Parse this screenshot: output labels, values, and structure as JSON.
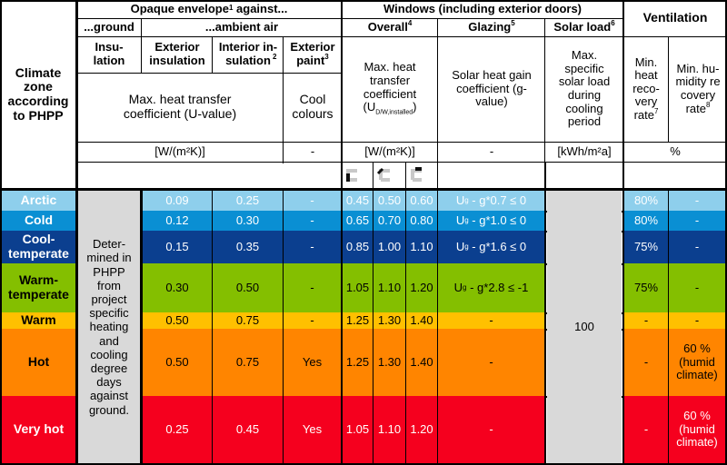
{
  "header": {
    "climate_zone": "Climate zone according to PHPP",
    "opaque_envelope": "Opaque envelope",
    "opaque_envelope_sup": "1",
    "opaque_envelope_suffix": " against...",
    "ground": "...ground",
    "ambient_air": "...ambient air",
    "insulation": "Insu- lation",
    "exterior_insulation": "Exterior insulation",
    "interior_insulation": "Interior in- sulation",
    "interior_insulation_sup": "2",
    "exterior_paint": "Exterior paint",
    "exterior_paint_sup": "3",
    "max_heat_transfer": "Max. heat transfer coefficient (U-value)",
    "cool_colours": "Cool colours",
    "unit_wm2k": "[W/(m²K)]",
    "unit_dash": "-",
    "windows": "Windows (including exterior doors)",
    "overall": "Overall",
    "overall_sup": "4",
    "glazing": "Glazing",
    "glazing_sup": "5",
    "solar_load": "Solar load",
    "solar_load_sup": "6",
    "win_max_heat": "Max. heat transfer coefficient",
    "win_u_symbol": "U",
    "win_u_sub": "D/W,installed",
    "solar_heat_gain": "Solar heat gain coefficient (g-value)",
    "max_solar_load": "Max. specific solar load during cooling period",
    "unit_win": "[W/(m²K)]",
    "unit_glazing": "-",
    "unit_solar": "[kWh/m²a]",
    "ventilation": "Ventilation",
    "min_heat_recovery": "Min. heat reco- very rate",
    "min_heat_recovery_sup": "7",
    "min_humidity_recovery": "Min. hu- midity re covery rate",
    "min_humidity_recovery_sup": "8",
    "unit_percent": "%",
    "frame_icons": [
      "frame-icon-1",
      "frame-icon-2",
      "frame-icon-3"
    ]
  },
  "ground_note": "Deter- mined in PHPP from project specific heating and cooling degree days against ground.",
  "solar_load_value": "100",
  "rows": [
    {
      "zone": "Arctic",
      "bg": "#8ecfec",
      "fg": "#ffffff",
      "ext": "0.09",
      "int": "0.25",
      "paint": "-",
      "w1": "0.45",
      "w2": "0.50",
      "w3": "0.60",
      "glazing": "Ug - g*0.7 ≤ 0",
      "g_pre": "U",
      "g_sub": "g",
      "g_post": " - g*0.7 ≤ 0",
      "hr": "80%",
      "hum": "-"
    },
    {
      "zone": "Cold",
      "bg": "#0a8fd3",
      "fg": "#ffffff",
      "ext": "0.12",
      "int": "0.30",
      "paint": "-",
      "w1": "0.65",
      "w2": "0.70",
      "w3": "0.80",
      "glazing": "Ug - g*1.0 ≤ 0",
      "g_pre": "U",
      "g_sub": "g",
      "g_post": " - g*1.0 ≤ 0",
      "hr": "80%",
      "hum": "-"
    },
    {
      "zone": "Cool- temperate",
      "bg": "#0b3f8f",
      "fg": "#ffffff",
      "ext": "0.15",
      "int": "0.35",
      "paint": "-",
      "w1": "0.85",
      "w2": "1.00",
      "w3": "1.10",
      "glazing": "Ug - g*1.6 ≤ 0",
      "g_pre": "U",
      "g_sub": "g",
      "g_post": " - g*1.6 ≤ 0",
      "hr": "75%",
      "hum": "-"
    },
    {
      "zone": "Warm- temperate",
      "bg": "#84bf00",
      "fg": "#000000",
      "ext": "0.30",
      "int": "0.50",
      "paint": "-",
      "w1": "1.05",
      "w2": "1.10",
      "w3": "1.20",
      "glazing": "Ug - g*2.8 ≤ -1",
      "g_pre": "U",
      "g_sub": "g",
      "g_post": " - g*2.8 ≤ -1",
      "hr": "75%",
      "hum": "-"
    },
    {
      "zone": "Warm",
      "bg": "#ffc000",
      "fg": "#000000",
      "ext": "0.50",
      "int": "0.75",
      "paint": "-",
      "w1": "1.25",
      "w2": "1.30",
      "w3": "1.40",
      "glazing": "-",
      "g_pre": "-",
      "g_sub": "",
      "g_post": "",
      "hr": "-",
      "hum": "-"
    },
    {
      "zone": "Hot",
      "bg": "#ff8500",
      "fg": "#000000",
      "ext": "0.50",
      "int": "0.75",
      "paint": "Yes",
      "w1": "1.25",
      "w2": "1.30",
      "w3": "1.40",
      "glazing": "-",
      "g_pre": "-",
      "g_sub": "",
      "g_post": "",
      "hr": "-",
      "hum": "60 % (humid climate)"
    },
    {
      "zone": "Very hot",
      "bg": "#f5001e",
      "fg": "#ffffff",
      "ext": "0.25",
      "int": "0.45",
      "paint": "Yes",
      "w1": "1.05",
      "w2": "1.10",
      "w3": "1.20",
      "glazing": "-",
      "g_pre": "-",
      "g_sub": "",
      "g_post": "",
      "hr": "-",
      "hum": "60 % (humid climate)"
    }
  ]
}
